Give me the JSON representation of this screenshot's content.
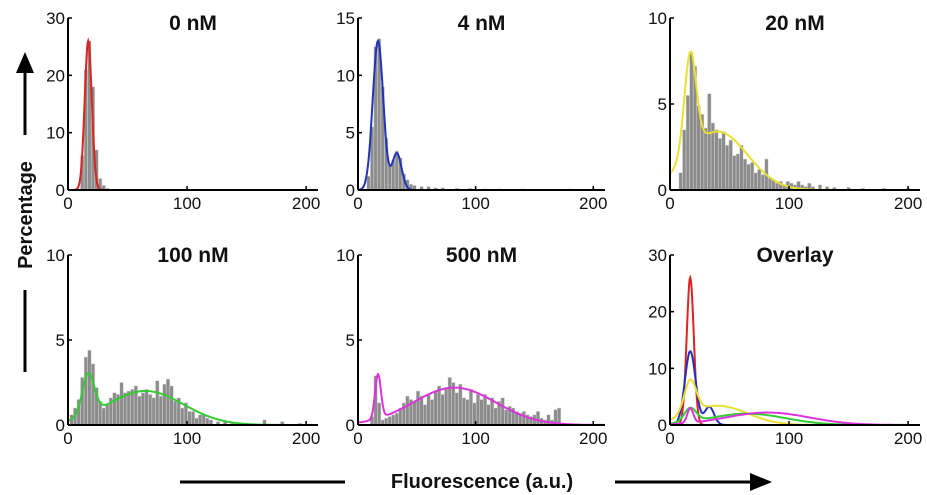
{
  "figure": {
    "ylabel": "Percentage",
    "xlabel": "Fluorescence (a.u.)",
    "colors": {
      "bars": "#8c8c8c",
      "bar_edge": "#d9d9d9",
      "axis": "#000000"
    }
  },
  "chart_data": [
    {
      "type": "histogram",
      "title": "0 nM",
      "xlim": [
        0,
        210
      ],
      "ylim": [
        0,
        30
      ],
      "xticks": [
        "0",
        "100",
        "200"
      ],
      "yticks": [
        "0",
        "10",
        "20",
        "30"
      ],
      "fit_color": "#dd2222",
      "bins": {
        "width": 3,
        "x": [
          12,
          15,
          18,
          21,
          24,
          27,
          30,
          33
        ],
        "values": [
          6,
          21,
          26,
          18,
          7,
          2,
          0.8,
          0.3
        ]
      },
      "fit_components": [
        {
          "mu": 17,
          "sigma": 3,
          "amp": 26
        }
      ]
    },
    {
      "type": "histogram",
      "title": "4 nM",
      "xlim": [
        0,
        210
      ],
      "ylim": [
        0,
        15
      ],
      "xticks": [
        "0",
        "100",
        "200"
      ],
      "yticks": [
        "0",
        "5",
        "10",
        "15"
      ],
      "fit_color": "#2233bb",
      "bins": {
        "width": 3,
        "x": [
          9,
          12,
          15,
          18,
          21,
          24,
          27,
          30,
          33,
          36,
          39,
          42,
          45,
          48,
          54,
          60,
          66,
          72,
          84,
          95,
          108,
          120,
          140,
          180,
          200
        ],
        "values": [
          1.2,
          5.5,
          12.5,
          13.2,
          9.0,
          4.5,
          2.2,
          2.6,
          3.4,
          2.8,
          1.4,
          0.9,
          0.5,
          0.4,
          0.3,
          0.3,
          0.2,
          0.2,
          0.15,
          0.15,
          0.1,
          0.1,
          0.1,
          0.1,
          0.1
        ]
      },
      "fit_components": [
        {
          "mu": 17,
          "sigma": 4.5,
          "amp": 13
        },
        {
          "mu": 33,
          "sigma": 4,
          "amp": 3.2
        }
      ]
    },
    {
      "type": "histogram",
      "title": "20 nM",
      "xlim": [
        0,
        210
      ],
      "ylim": [
        0,
        10
      ],
      "xticks": [
        "0",
        "100",
        "200"
      ],
      "yticks": [
        "0",
        "5",
        "10"
      ],
      "fit_color": "#e8e033",
      "bins": {
        "width": 3,
        "x": [
          9,
          12,
          15,
          18,
          21,
          24,
          27,
          30,
          33,
          36,
          39,
          42,
          45,
          48,
          51,
          54,
          57,
          60,
          63,
          66,
          69,
          72,
          75,
          78,
          81,
          84,
          87,
          90,
          93,
          96,
          99,
          102,
          105,
          108,
          111,
          114,
          117,
          120,
          126,
          132,
          138,
          150,
          162,
          180,
          200
        ],
        "values": [
          1.0,
          3.5,
          5.5,
          8.0,
          7.2,
          4.9,
          4.4,
          3.6,
          5.6,
          3.9,
          3.5,
          3.0,
          3.4,
          2.6,
          2.9,
          2.0,
          2.1,
          2.6,
          1.8,
          1.5,
          1.6,
          1.0,
          1.2,
          0.9,
          1.8,
          0.7,
          0.6,
          0.4,
          0.5,
          0.3,
          0.5,
          0.4,
          0.3,
          0.5,
          0.3,
          0.2,
          0.4,
          0.2,
          0.3,
          0.2,
          0.15,
          0.15,
          0.1,
          0.1,
          0.1
        ]
      },
      "fit_components": [
        {
          "mu": 17,
          "sigma": 5,
          "amp": 5.8
        },
        {
          "mu": 40,
          "sigma": 25,
          "amp": 3.4
        }
      ]
    },
    {
      "type": "histogram",
      "title": "100 nM",
      "xlim": [
        0,
        210
      ],
      "ylim": [
        0,
        10
      ],
      "xticks": [
        "0",
        "100",
        "200"
      ],
      "yticks": [
        "0",
        "5",
        "10"
      ],
      "fit_color": "#33cc33",
      "bins": {
        "width": 3,
        "x": [
          3,
          6,
          9,
          12,
          15,
          18,
          21,
          24,
          27,
          30,
          33,
          36,
          39,
          42,
          45,
          48,
          51,
          54,
          57,
          60,
          63,
          66,
          69,
          72,
          75,
          78,
          81,
          84,
          87,
          90,
          93,
          96,
          99,
          102,
          105,
          108,
          111,
          114,
          117,
          120,
          126,
          132,
          138,
          150,
          165,
          180,
          195
        ],
        "values": [
          0.6,
          1.0,
          1.5,
          2.8,
          4.0,
          4.4,
          3.6,
          2.2,
          1.4,
          1.0,
          1.2,
          1.6,
          1.9,
          1.8,
          2.5,
          1.9,
          2.0,
          2.1,
          2.3,
          1.7,
          1.9,
          2.1,
          1.8,
          1.6,
          2.6,
          1.7,
          2.4,
          2.7,
          2.3,
          1.4,
          1.6,
          1.0,
          1.3,
          0.8,
          0.8,
          0.4,
          0.6,
          0.6,
          0.4,
          0.3,
          0.2,
          0.2,
          0.1,
          0.1,
          0.3,
          0.2,
          0.1
        ]
      },
      "fit_components": [
        {
          "mu": 17,
          "sigma": 5,
          "amp": 2.4
        },
        {
          "mu": 65,
          "sigma": 32,
          "amp": 2.0
        }
      ]
    },
    {
      "type": "histogram",
      "title": "500 nM",
      "xlim": [
        0,
        210
      ],
      "ylim": [
        0,
        10
      ],
      "xticks": [
        "0",
        "100",
        "200"
      ],
      "yticks": [
        "0",
        "5",
        "10"
      ],
      "fit_color": "#dd33dd",
      "bins": {
        "width": 3,
        "x": [
          12,
          15,
          18,
          21,
          24,
          27,
          30,
          33,
          36,
          39,
          42,
          45,
          48,
          51,
          54,
          57,
          60,
          63,
          66,
          69,
          72,
          75,
          78,
          81,
          84,
          87,
          90,
          93,
          96,
          99,
          102,
          105,
          108,
          111,
          114,
          117,
          120,
          123,
          126,
          129,
          132,
          135,
          138,
          141,
          144,
          147,
          150,
          153,
          156,
          159,
          162,
          165,
          168,
          171
        ],
        "values": [
          0.5,
          2.9,
          1.3,
          0.3,
          0.4,
          0.5,
          0.6,
          0.7,
          1.0,
          1.3,
          1.7,
          1.5,
          1.4,
          2.0,
          1.7,
          1.2,
          1.8,
          1.5,
          2.0,
          2.3,
          1.8,
          2.2,
          2.8,
          2.5,
          1.9,
          2.4,
          1.6,
          1.5,
          2.1,
          1.3,
          1.8,
          1.5,
          1.8,
          1.2,
          1.6,
          1.0,
          1.4,
          1.6,
          0.9,
          1.1,
          1.0,
          0.8,
          0.7,
          0.8,
          0.6,
          0.5,
          0.6,
          0.8,
          0.4,
          0.3,
          0.6,
          0.3,
          0.9,
          1.0
        ]
      },
      "fit_components": [
        {
          "mu": 17,
          "sigma": 2.5,
          "amp": 2.6
        },
        {
          "mu": 82,
          "sigma": 35,
          "amp": 2.2
        }
      ]
    },
    {
      "type": "line",
      "title": "Overlay",
      "xlim": [
        0,
        210
      ],
      "ylim": [
        0,
        30
      ],
      "xticks": [
        "0",
        "100",
        "200"
      ],
      "yticks": [
        "0",
        "10",
        "20",
        "30"
      ],
      "series": [
        {
          "color": "#dd2222",
          "fit_components": [
            {
              "mu": 17,
              "sigma": 3,
              "amp": 26
            }
          ]
        },
        {
          "color": "#2233bb",
          "fit_components": [
            {
              "mu": 17,
              "sigma": 4.5,
              "amp": 13
            },
            {
              "mu": 33,
              "sigma": 4,
              "amp": 3.2
            }
          ]
        },
        {
          "color": "#e8e033",
          "fit_components": [
            {
              "mu": 17,
              "sigma": 5,
              "amp": 5.8
            },
            {
              "mu": 40,
              "sigma": 25,
              "amp": 3.4
            }
          ]
        },
        {
          "color": "#33cc33",
          "fit_components": [
            {
              "mu": 17,
              "sigma": 5,
              "amp": 2.4
            },
            {
              "mu": 65,
              "sigma": 32,
              "amp": 2.0
            }
          ]
        },
        {
          "color": "#dd33dd",
          "fit_components": [
            {
              "mu": 17,
              "sigma": 2.5,
              "amp": 2.6
            },
            {
              "mu": 82,
              "sigma": 35,
              "amp": 2.2
            }
          ]
        }
      ]
    }
  ]
}
